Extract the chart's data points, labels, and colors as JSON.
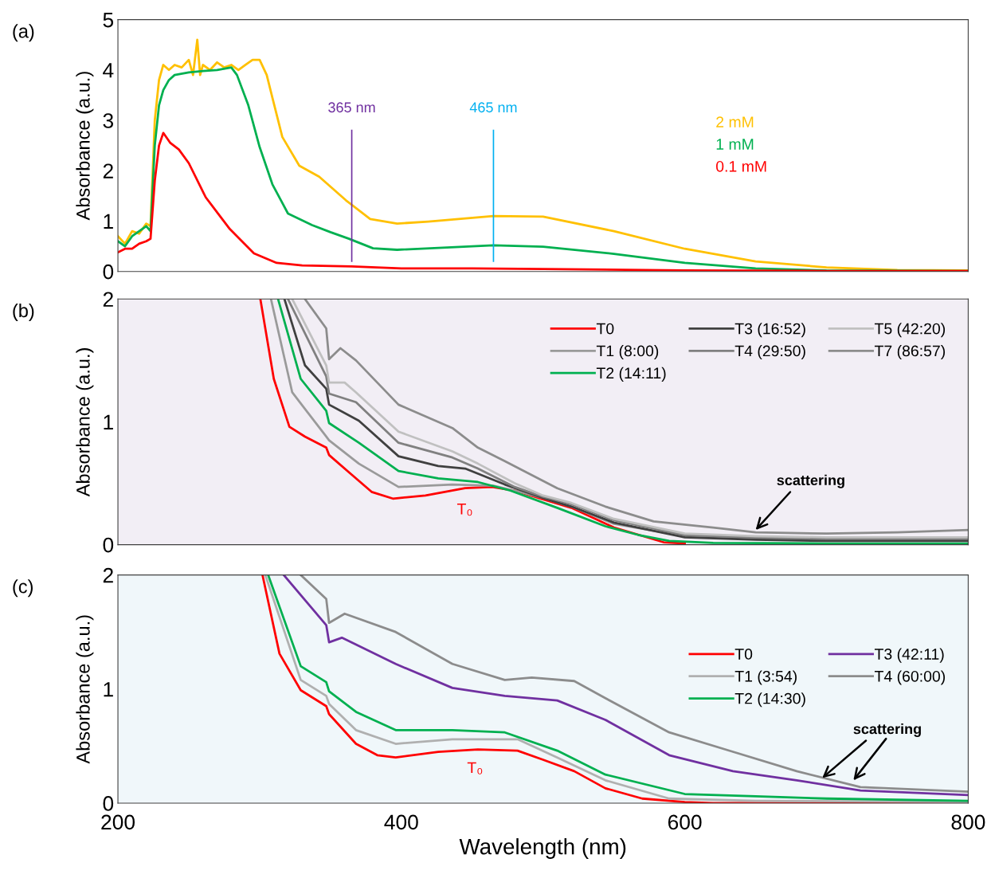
{
  "chart_data": [
    {
      "type": "line",
      "title": "(a)",
      "ylabel": "Absorbance (a.u.)",
      "xlim": [
        200,
        800
      ],
      "xticks": [
        200,
        400,
        600,
        800
      ],
      "ylim": [
        0,
        5
      ],
      "yticks": [
        0,
        1,
        2,
        3,
        4,
        5
      ],
      "tick_labels": "y",
      "legend": "right",
      "series": [
        {
          "name": "2 mM",
          "color": "#ffc000",
          "x": [
            200,
            205,
            210,
            215,
            220,
            223,
            226,
            229,
            232,
            236,
            240,
            245,
            250,
            253,
            256,
            258,
            260,
            265,
            270,
            275,
            280,
            285,
            290,
            295,
            300,
            305,
            309,
            316,
            328,
            342,
            361,
            378,
            397,
            419,
            465,
            500,
            550,
            600,
            650,
            700,
            750,
            800
          ],
          "values": [
            0.7,
            0.55,
            0.8,
            0.75,
            0.95,
            0.9,
            3.0,
            3.8,
            4.1,
            4.0,
            4.1,
            4.05,
            4.2,
            3.9,
            4.6,
            3.9,
            4.1,
            4.0,
            4.15,
            4.05,
            4.1,
            4.0,
            4.1,
            4.2,
            4.2,
            3.9,
            3.45,
            2.67,
            2.1,
            1.88,
            1.41,
            1.04,
            0.95,
            0.99,
            1.1,
            1.09,
            0.8,
            0.45,
            0.2,
            0.08,
            0.03,
            0.02
          ]
        },
        {
          "name": "1 mM",
          "color": "#00b050",
          "x": [
            200,
            205,
            210,
            215,
            220,
            223,
            226,
            229,
            232,
            236,
            240,
            250,
            260,
            270,
            280,
            284,
            292,
            300,
            309,
            320,
            337,
            350,
            363,
            380,
            397,
            465,
            500,
            550,
            600,
            650,
            700,
            800
          ],
          "values": [
            0.6,
            0.5,
            0.7,
            0.8,
            0.9,
            0.8,
            2.5,
            3.3,
            3.6,
            3.8,
            3.9,
            3.95,
            3.98,
            4.0,
            4.05,
            3.9,
            3.3,
            2.47,
            1.73,
            1.15,
            0.92,
            0.78,
            0.65,
            0.46,
            0.43,
            0.52,
            0.49,
            0.35,
            0.17,
            0.06,
            0.02,
            0.01
          ]
        },
        {
          "name": "0.1 mM",
          "color": "#ff0000",
          "x": [
            200,
            205,
            210,
            215,
            220,
            223,
            226,
            229,
            232,
            237,
            243,
            250,
            262,
            279,
            296,
            312,
            330,
            365,
            400,
            450,
            500,
            600,
            700,
            800
          ],
          "values": [
            0.38,
            0.45,
            0.45,
            0.55,
            0.6,
            0.65,
            1.8,
            2.5,
            2.75,
            2.55,
            2.42,
            2.15,
            1.47,
            0.84,
            0.36,
            0.17,
            0.12,
            0.1,
            0.06,
            0.06,
            0.05,
            0.02,
            0.01,
            0.01
          ]
        }
      ],
      "ref_lines": [
        {
          "axis": "x",
          "value": 365,
          "label": "365 nm",
          "color": "#7030a0"
        },
        {
          "axis": "x",
          "value": 465,
          "label": "465 nm",
          "color": "#00b0f0"
        }
      ]
    },
    {
      "type": "line",
      "title": "(b)",
      "ylabel": "Absorbance (a.u.)",
      "xlim": [
        200,
        800
      ],
      "xticks": [
        200,
        400,
        600,
        800
      ],
      "ylim": [
        0,
        2
      ],
      "yticks": [
        0,
        1,
        2
      ],
      "tick_labels": "y",
      "legend": "top right",
      "series": [
        {
          "name": "T0",
          "color": "#ff0000",
          "x": [
            300.5,
            310,
            321,
            332,
            347,
            349,
            364,
            379,
            394,
            417,
            445,
            464,
            480,
            500,
            520,
            550,
            585,
            600
          ],
          "values": [
            2,
            1.35,
            0.96,
            0.88,
            0.79,
            0.73,
            0.58,
            0.43,
            0.375,
            0.4,
            0.46,
            0.47,
            0.44,
            0.37,
            0.3,
            0.14,
            0.02,
            0.01
          ]
        },
        {
          "name": "T1 (8:00)",
          "color": "#9a9a9a",
          "x": [
            308,
            323,
            347,
            349,
            370,
            398,
            436,
            465,
            480,
            500,
            520,
            550,
            600,
            650,
            700,
            800
          ],
          "values": [
            2,
            1.24,
            0.88,
            0.85,
            0.66,
            0.47,
            0.49,
            0.48,
            0.44,
            0.38,
            0.31,
            0.17,
            0.07,
            0.05,
            0.04,
            0.04
          ]
        },
        {
          "name": "T2 (14:11)",
          "color": "#00b050",
          "x": [
            313,
            329,
            347,
            349,
            370,
            398,
            426,
            454,
            477,
            510,
            544,
            567,
            589,
            620,
            700,
            800
          ],
          "values": [
            2,
            1.35,
            1.09,
            0.99,
            0.83,
            0.6,
            0.54,
            0.51,
            0.44,
            0.3,
            0.15,
            0.08,
            0.03,
            0.015,
            0.01,
            0.01
          ]
        },
        {
          "name": "T3 (16:52)",
          "color": "#404040",
          "x": [
            317.5,
            332,
            347,
            349,
            370,
            398,
            426,
            445,
            473,
            500,
            520,
            550,
            600,
            650,
            700,
            800
          ],
          "values": [
            2,
            1.46,
            1.27,
            1.14,
            1.01,
            0.72,
            0.64,
            0.62,
            0.49,
            0.38,
            0.31,
            0.18,
            0.06,
            0.04,
            0.03,
            0.03
          ]
        },
        {
          "name": "T4 (29:50)",
          "color": "#808080",
          "x": [
            320,
            347,
            349,
            368,
            398,
            436,
            454,
            480,
            500,
            520,
            550,
            600,
            650,
            700,
            800
          ],
          "values": [
            2,
            1.37,
            1.23,
            1.16,
            0.83,
            0.71,
            0.62,
            0.47,
            0.39,
            0.33,
            0.2,
            0.08,
            0.06,
            0.05,
            0.05
          ]
        },
        {
          "name": "T5 (42:20)",
          "color": "#c0c0c0",
          "x": [
            323,
            347,
            349,
            360,
            368,
            398,
            436,
            454,
            480,
            500,
            520,
            550,
            600,
            650,
            700,
            800
          ],
          "values": [
            2,
            1.46,
            1.32,
            1.32,
            1.24,
            0.92,
            0.76,
            0.66,
            0.5,
            0.4,
            0.34,
            0.21,
            0.09,
            0.07,
            0.06,
            0.06
          ]
        },
        {
          "name": "T7 (86:57)",
          "color": "#8c8c8c",
          "x": [
            332,
            347,
            349,
            357,
            368,
            398,
            436,
            454,
            473,
            510,
            544,
            578,
            620,
            650,
            700,
            750,
            800
          ],
          "values": [
            2,
            1.76,
            1.51,
            1.6,
            1.5,
            1.14,
            0.95,
            0.79,
            0.68,
            0.46,
            0.31,
            0.19,
            0.14,
            0.1,
            0.09,
            0.1,
            0.12
          ]
        }
      ],
      "annotations": [
        "T₀",
        {
          "text": "scattering",
          "x": 650,
          "y": 0.12
        }
      ]
    },
    {
      "type": "line",
      "title": "(c)",
      "xlabel": "Wavelength (nm)",
      "ylabel": "Absorbance (a.u.)",
      "xlim": [
        200,
        800
      ],
      "xticks": [
        200,
        400,
        600,
        800
      ],
      "ylim": [
        0,
        2
      ],
      "yticks": [
        0,
        1,
        2
      ],
      "legend": "right",
      "series": [
        {
          "name": "T0",
          "color": "#ff0000",
          "x": [
            302,
            314,
            329,
            347,
            349,
            368,
            383,
            396,
            426,
            454,
            482,
            500,
            522,
            544,
            570,
            600,
            620,
            800
          ],
          "values": [
            2,
            1.31,
            0.99,
            0.85,
            0.78,
            0.52,
            0.42,
            0.4,
            0.45,
            0.47,
            0.46,
            0.38,
            0.28,
            0.13,
            0.04,
            0.01,
            0.0,
            0.0
          ]
        },
        {
          "name": "T1 (3:54)",
          "color": "#b0b0b0",
          "x": [
            304,
            329,
            347,
            349,
            368,
            396,
            436,
            482,
            510,
            544,
            589,
            650,
            800
          ],
          "values": [
            2,
            1.08,
            0.94,
            0.87,
            0.64,
            0.52,
            0.56,
            0.56,
            0.4,
            0.2,
            0.04,
            0.02,
            0.01
          ]
        },
        {
          "name": "T2 (14:30)",
          "color": "#00b050",
          "x": [
            306,
            329,
            347,
            349,
            368,
            396,
            436,
            473,
            510,
            544,
            600,
            650,
            700,
            800
          ],
          "values": [
            2,
            1.2,
            1.06,
            0.98,
            0.8,
            0.64,
            0.64,
            0.62,
            0.46,
            0.25,
            0.08,
            0.06,
            0.04,
            0.02
          ]
        },
        {
          "name": "T3 (42:11)",
          "color": "#7030a0",
          "x": [
            317,
            347,
            349,
            358,
            396,
            436,
            473,
            510,
            544,
            589,
            634,
            679,
            724,
            800
          ],
          "values": [
            2,
            1.56,
            1.41,
            1.45,
            1.22,
            1.01,
            0.94,
            0.9,
            0.73,
            0.42,
            0.28,
            0.2,
            0.11,
            0.07
          ]
        },
        {
          "name": "T4 (60:00)",
          "color": "#8c8c8c",
          "x": [
            329,
            347,
            349,
            360,
            396,
            436,
            473,
            492,
            522,
            544,
            589,
            634,
            679,
            724,
            800
          ],
          "values": [
            2,
            1.79,
            1.58,
            1.66,
            1.5,
            1.22,
            1.08,
            1.1,
            1.07,
            0.92,
            0.62,
            0.45,
            0.28,
            0.14,
            0.1
          ]
        }
      ],
      "annotations": [
        "T₀",
        {
          "text": "scattering",
          "x": 697,
          "y": 0.22
        }
      ]
    }
  ]
}
